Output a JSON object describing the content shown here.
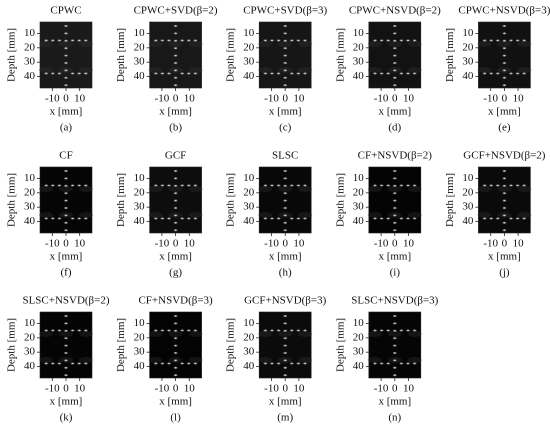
{
  "axes": {
    "xlabel": "x [mm]",
    "ylabel": "Depth [mm]",
    "xticks": [
      -10,
      0,
      10
    ],
    "yticks": [
      10,
      20,
      30,
      40
    ],
    "xlim": [
      -19,
      19
    ],
    "ylim": [
      2,
      48
    ]
  },
  "panels": [
    {
      "title": "CPWC",
      "caption": "(a)"
    },
    {
      "title": "CPWC+SVD(β=2)",
      "caption": "(b)"
    },
    {
      "title": "CPWC+SVD(β=3)",
      "caption": "(c)"
    },
    {
      "title": "CPWC+NSVD(β=2)",
      "caption": "(d)"
    },
    {
      "title": "CPWC+NSVD(β=3)",
      "caption": "(e)"
    },
    {
      "title": "CF",
      "caption": "(f)"
    },
    {
      "title": "GCF",
      "caption": "(g)"
    },
    {
      "title": "SLSC",
      "caption": "(h)"
    },
    {
      "title": "CF+NSVD(β=2)",
      "caption": "(i)"
    },
    {
      "title": "GCF+NSVD(β=2)",
      "caption": "(j)"
    },
    {
      "title": "SLSC+NSVD(β=2)",
      "caption": "(k)"
    },
    {
      "title": "CF+NSVD(β=3)",
      "caption": "(l)"
    },
    {
      "title": "GCF+NSVD(β=3)",
      "caption": "(m)"
    },
    {
      "title": "SLSC+NSVD(β=3)",
      "caption": "(n)"
    }
  ]
}
